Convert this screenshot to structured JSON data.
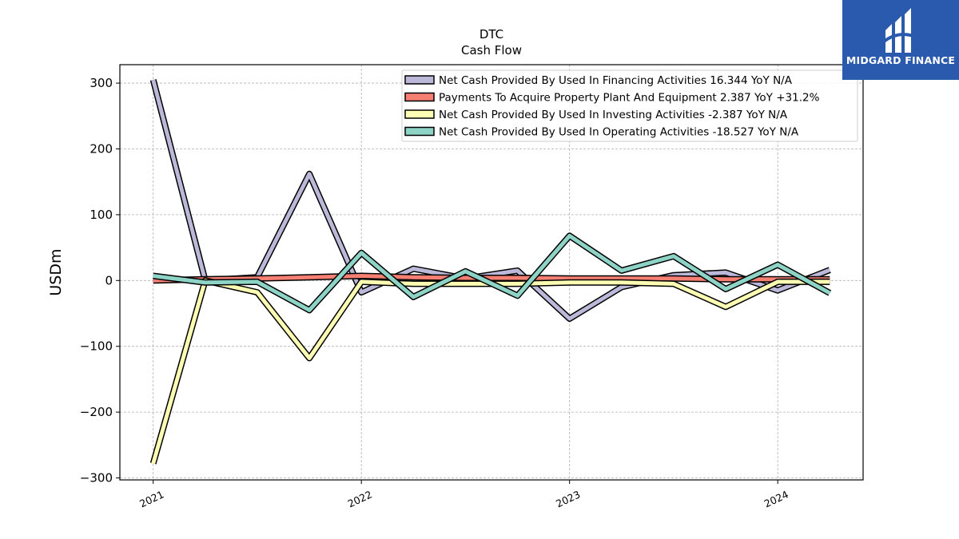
{
  "logo": {
    "text": "MIDGARD FINANCE",
    "background": "#2a5aad"
  },
  "chart_data": {
    "type": "line",
    "title": "DTC",
    "subtitle": "Cash Flow",
    "xlabel": "",
    "ylabel": "USDm",
    "xlim": [
      2020.84,
      2024.41
    ],
    "ylim": [
      -303,
      328
    ],
    "x_ticks": [
      2021,
      2022,
      2023,
      2024
    ],
    "x_tick_labels": [
      "2021",
      "2022",
      "2023",
      "2024"
    ],
    "y_ticks": [
      -300,
      -200,
      -100,
      0,
      100,
      200,
      300
    ],
    "y_tick_labels": [
      "−300",
      "−200",
      "−100",
      "0",
      "100",
      "200",
      "300"
    ],
    "grid": true,
    "legend_position": "top-right",
    "x": [
      2021.0,
      2021.25,
      2021.5,
      2021.75,
      2022.0,
      2022.25,
      2022.5,
      2022.75,
      2023.0,
      2023.25,
      2023.5,
      2023.75,
      2024.0,
      2024.25
    ],
    "series": [
      {
        "name": "Net Cash Provided By Used In Financing Activities  16.344 YoY N/A",
        "color": "#bcb8d9",
        "values": [
          305,
          0,
          5,
          162,
          -18,
          18,
          3,
          15,
          -58,
          -10,
          8,
          12,
          -15,
          16
        ]
      },
      {
        "name": "Payments To Acquire Property Plant And Equipment  2.387 YoY +31.2%",
        "color": "#f47f72",
        "values": [
          0,
          2,
          3,
          5,
          7,
          5,
          4,
          4,
          3,
          3,
          3,
          2,
          2,
          2
        ]
      },
      {
        "name": "Net Cash Provided By Used In Investing Activities  -2.387 YoY N/A",
        "color": "#fdfdb3",
        "values": [
          -278,
          0,
          -18,
          -118,
          -2,
          -5,
          -5,
          -5,
          -3,
          -3,
          -5,
          -40,
          -2,
          -2
        ]
      },
      {
        "name": "Net Cash Provided By Used In Operating Activities  -18.527 YoY N/A",
        "color": "#8dd3c6",
        "values": [
          7,
          -3,
          -2,
          -45,
          42,
          -25,
          14,
          -23,
          68,
          15,
          37,
          -13,
          24,
          -19
        ]
      }
    ]
  }
}
